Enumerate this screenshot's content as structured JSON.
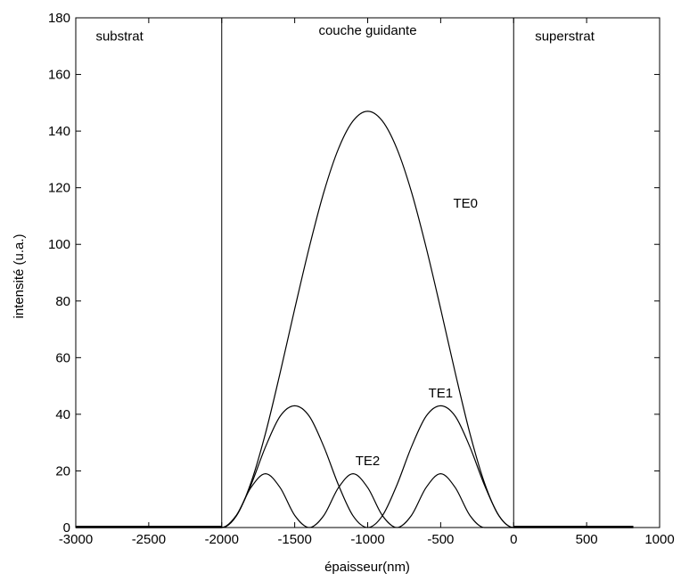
{
  "chart_data": {
    "type": "line",
    "title": "",
    "xlabel": "épaisseur(nm)",
    "ylabel": "intensité (u.a.)",
    "xlim": [
      -3000,
      1000
    ],
    "ylim": [
      0,
      180
    ],
    "xticks": [
      -3000,
      -2500,
      -2000,
      -1500,
      -1000,
      -500,
      0,
      500,
      1000
    ],
    "yticks": [
      0,
      20,
      40,
      60,
      80,
      100,
      120,
      140,
      160,
      180
    ],
    "grid": false,
    "legend": "none",
    "region_boundaries": [
      -2000,
      0
    ],
    "region_labels": [
      {
        "text": "substrat",
        "x": -2700,
        "y": 172
      },
      {
        "text": "couche guidante",
        "x": -1000,
        "y": 174
      },
      {
        "text": "superstrat",
        "x": 350,
        "y": 172
      }
    ],
    "annotations": [
      {
        "text": "TE0",
        "x": -330,
        "y": 113
      },
      {
        "text": "TE1",
        "x": -500,
        "y": 46
      },
      {
        "text": "TE2",
        "x": -1000,
        "y": 22
      }
    ],
    "series": [
      {
        "x": [
          -3000,
          -2000,
          -1900,
          -1800,
          -1700,
          -1600,
          -1500,
          -1400,
          -1300,
          -1200,
          -1100,
          -1000,
          -900,
          -800,
          -700,
          -600,
          -500,
          -400,
          -300,
          -200,
          -100,
          0,
          820
        ],
        "y": [
          0,
          0,
          4.1,
          15.8,
          33.3,
          54.6,
          77.2,
          99.0,
          118.5,
          133.8,
          143.6,
          147.0,
          143.6,
          133.8,
          118.5,
          99.0,
          77.2,
          54.6,
          33.3,
          15.8,
          4.1,
          0,
          0
        ]
      },
      {
        "x": [
          -3000,
          -2000,
          -1900,
          -1800,
          -1700,
          -1600,
          -1500,
          -1400,
          -1300,
          -1200,
          -1100,
          -1000,
          -900,
          -800,
          -700,
          -600,
          -500,
          -400,
          -300,
          -200,
          -100,
          0,
          820
        ],
        "y": [
          0,
          0,
          4.1,
          15.0,
          28.5,
          39.3,
          43.0,
          39.3,
          28.5,
          15.0,
          4.1,
          0,
          4.1,
          15.0,
          28.5,
          39.3,
          43.0,
          39.3,
          28.5,
          15.0,
          4.1,
          0,
          0
        ]
      },
      {
        "x": [
          -3000,
          -2000,
          -1900,
          -1800,
          -1700,
          -1600,
          -1500,
          -1400,
          -1300,
          -1200,
          -1100,
          -1000,
          -900,
          -800,
          -700,
          -600,
          -500,
          -400,
          -300,
          -200,
          -100,
          0,
          820
        ],
        "y": [
          0,
          0,
          4.3,
          14.1,
          19.0,
          14.1,
          4.3,
          0,
          4.3,
          14.1,
          19.0,
          14.1,
          4.3,
          0,
          4.3,
          14.1,
          19.0,
          14.1,
          4.3,
          0,
          0,
          0,
          0
        ]
      }
    ]
  }
}
